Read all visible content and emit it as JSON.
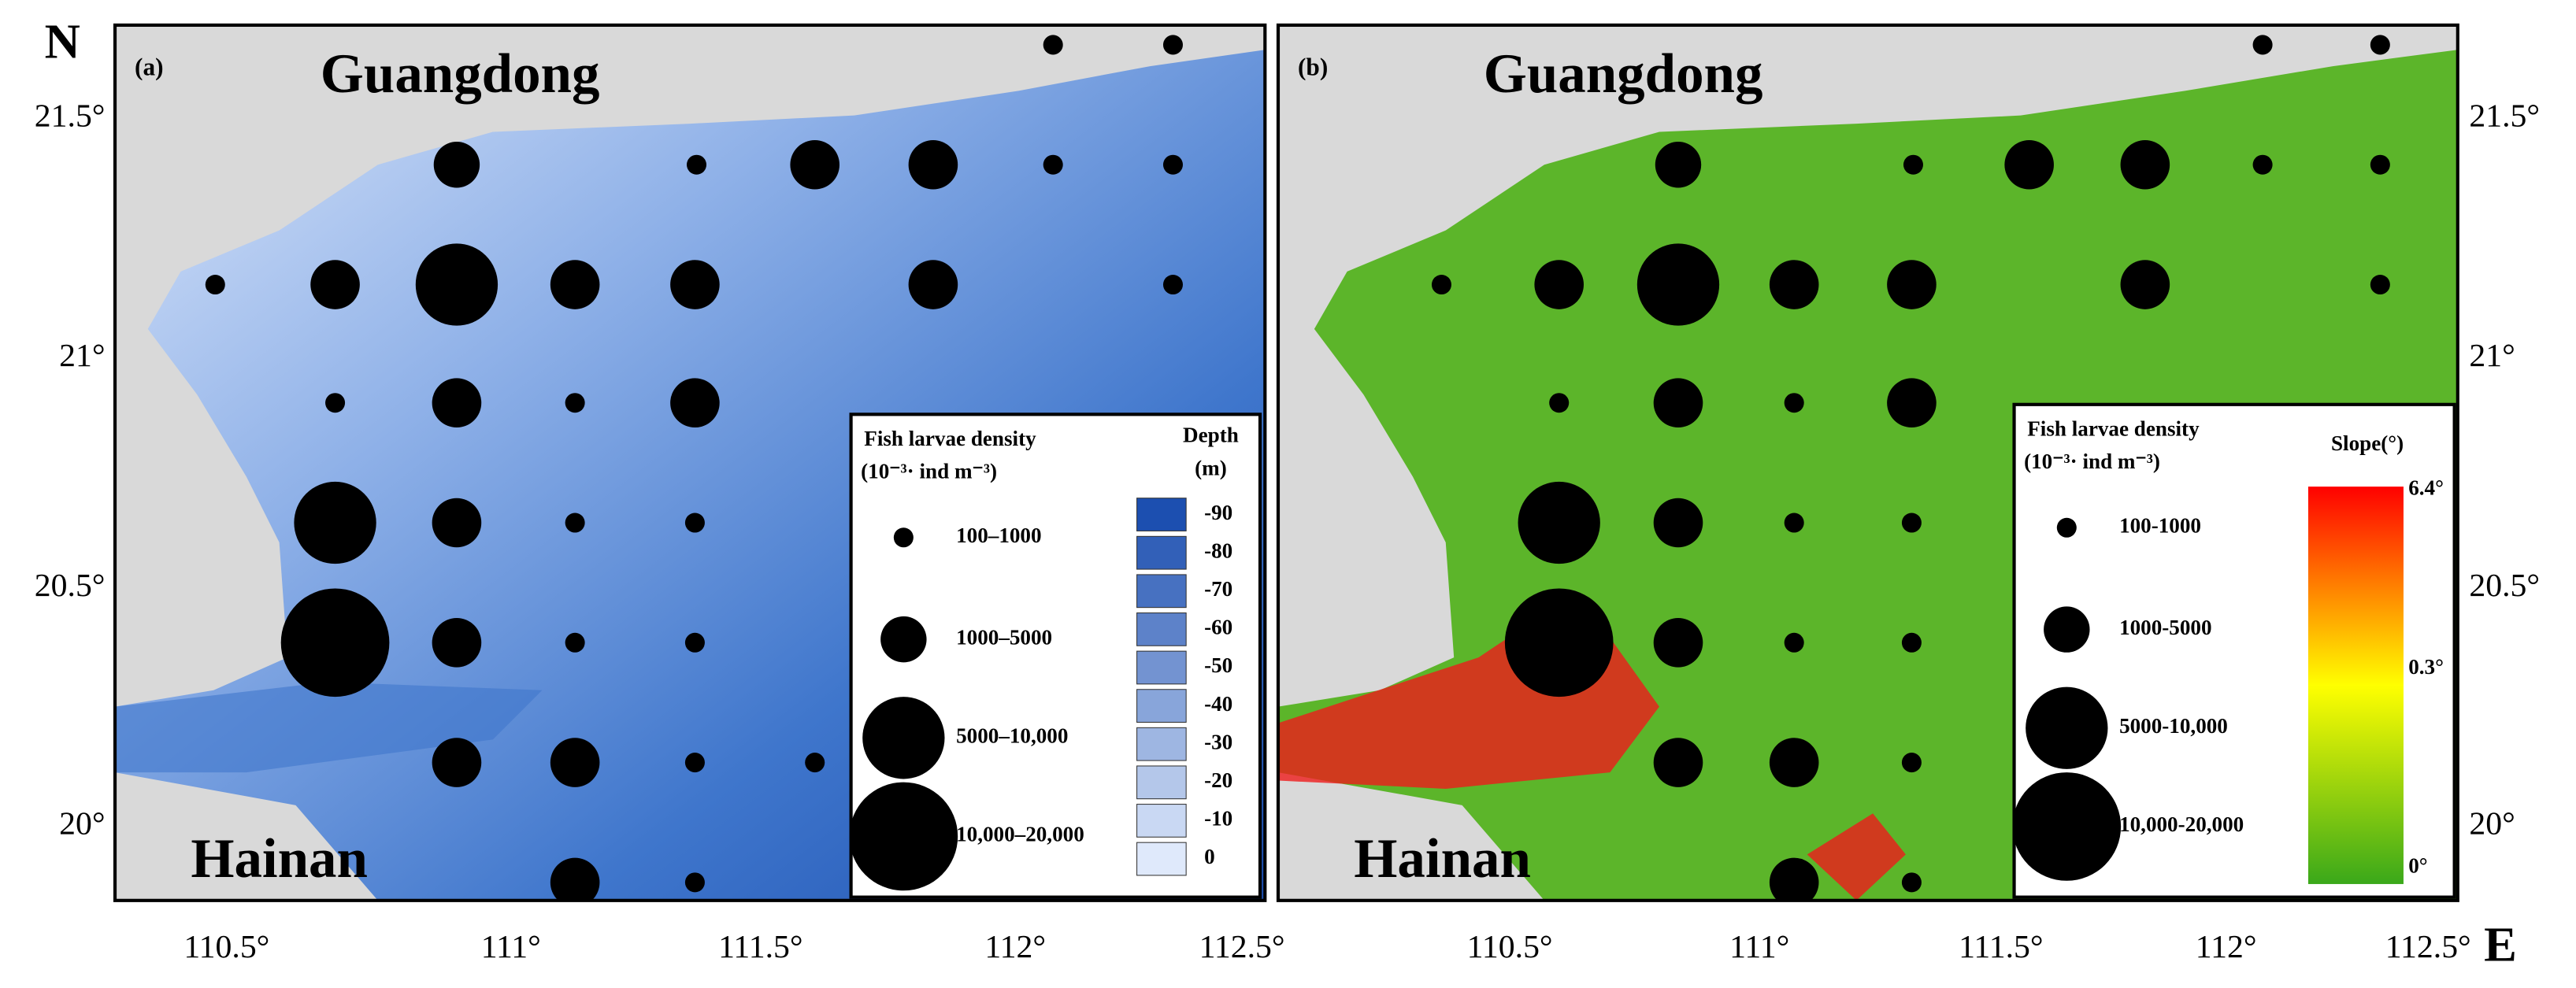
{
  "compass": {
    "north": "N",
    "east": "E"
  },
  "y_axis_labels": [
    "21.5°",
    "21°",
    "20.5°",
    "20°"
  ],
  "x_axis_labels_a": [
    "110.5°",
    "111°",
    "111.5°",
    "112°",
    "112.5°"
  ],
  "x_axis_labels_b": [
    "110.5°",
    "111°",
    "111.5°",
    "112°",
    "112.5°"
  ],
  "panels": [
    {
      "label": "(a)",
      "regions": [
        "Guangdong",
        "Hainan"
      ],
      "legend": {
        "title": "Fish larvae  density",
        "unit": "(10⁻³· ind m⁻³)",
        "classes": [
          "100–1000",
          "1000–5000",
          "5000–10,000",
          "10,000–20,000"
        ],
        "scale_title": "Depth",
        "scale_unit": "(m)",
        "scale_labels": [
          "-90",
          "-80",
          "-70",
          "-60",
          "-50",
          "-40",
          "-30",
          "-20",
          "-10",
          "0"
        ]
      }
    },
    {
      "label": "(b)",
      "regions": [
        "Guangdong",
        "Hainan"
      ],
      "legend": {
        "title": "Fish larvae  density",
        "unit": "(10⁻³· ind m⁻³)",
        "classes": [
          "100-1000",
          "1000-5000",
          "5000-10,000",
          "10,000-20,000"
        ],
        "scale_title": "Slope(°)",
        "scale_labels": [
          "6.4°",
          "0.3°",
          "0°"
        ]
      }
    }
  ]
}
